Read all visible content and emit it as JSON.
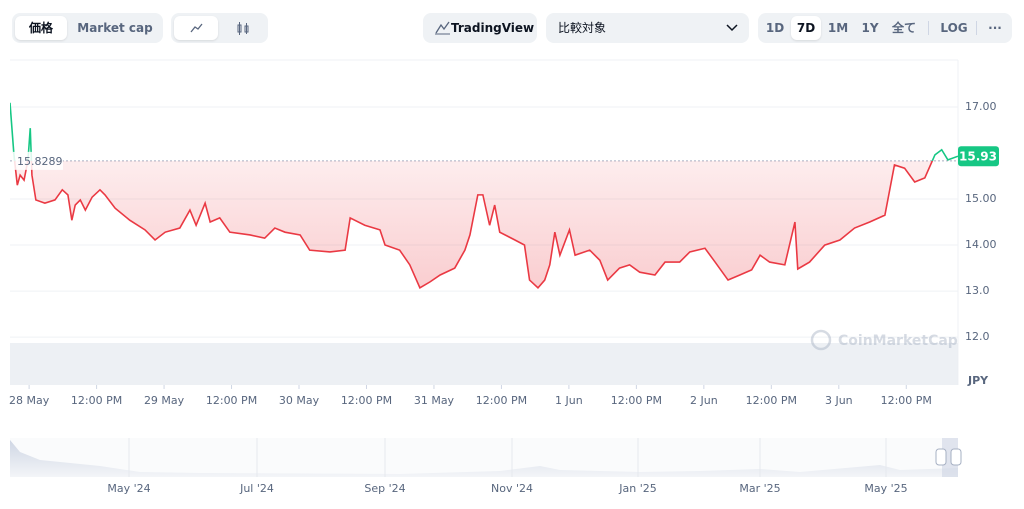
{
  "toolbar": {
    "price_tab": "価格",
    "market_cap_tab": "Market cap",
    "tradingview": "TradingView",
    "compare": "比較対象",
    "ranges": [
      "1D",
      "7D",
      "1M",
      "1Y",
      "全て"
    ],
    "log": "LOG",
    "more": "···"
  },
  "chart_data": {
    "type": "line",
    "baseline": 15.8289,
    "y_label": "JPY",
    "watermark": "CoinMarketCap",
    "color_above": "#16c784",
    "color_below": "#ea3943",
    "xlim": [
      -3.4,
      165.2
    ],
    "xticks": [
      {
        "value": 0,
        "label": "28 May"
      },
      {
        "value": 12,
        "label": "12:00 PM"
      },
      {
        "value": 24,
        "label": "29 May"
      },
      {
        "value": 36,
        "label": "12:00 PM"
      },
      {
        "value": 48,
        "label": "30 May"
      },
      {
        "value": 60,
        "label": "12:00 PM"
      },
      {
        "value": 72,
        "label": "31 May"
      },
      {
        "value": 84,
        "label": "12:00 PM"
      },
      {
        "value": 96,
        "label": "1 Jun"
      },
      {
        "value": 108,
        "label": "12:00 PM"
      },
      {
        "value": 120,
        "label": "2 Jun"
      },
      {
        "value": 132,
        "label": "12:00 PM"
      },
      {
        "value": 144,
        "label": "3 Jun"
      },
      {
        "value": 156,
        "label": "12:00 PM"
      }
    ],
    "ylim": [
      10.96,
      18.02
    ],
    "yticks": [
      {
        "value": 12,
        "label": "12.0"
      },
      {
        "value": 13,
        "label": "13.0"
      },
      {
        "value": 14,
        "label": "14.00"
      },
      {
        "value": 15,
        "label": "15.00"
      },
      {
        "value": 17,
        "label": "17.00"
      }
    ],
    "grid": true,
    "x": [
      -3.4,
      -2.7,
      -2.1,
      -1.6,
      -0.9,
      -0.2,
      0.2,
      0.5,
      1.2,
      2.8,
      4.6,
      5.9,
      6.9,
      7.6,
      8.2,
      9.1,
      10.0,
      11.2,
      12.6,
      13.5,
      15.3,
      17.9,
      20.6,
      22.4,
      24.2,
      26.8,
      28.6,
      29.7,
      31.3,
      32.2,
      33.9,
      35.7,
      39.3,
      41.9,
      43.7,
      45.5,
      48.2,
      49.9,
      53.5,
      56.2,
      57.1,
      59.7,
      62.4,
      63.3,
      65.9,
      67.7,
      69.5,
      71.3,
      73.1,
      75.7,
      77.5,
      78.4,
      79.8,
      80.7,
      81.9,
      82.8,
      83.7,
      86.4,
      88.1,
      89.0,
      90.5,
      91.7,
      92.6,
      93.5,
      94.4,
      96.1,
      97.1,
      99.7,
      101.5,
      102.9,
      105.0,
      106.8,
      108.6,
      111.3,
      113.1,
      115.7,
      117.5,
      120.2,
      122.0,
      124.3,
      126.4,
      128.5,
      130.0,
      131.7,
      134.4,
      136.2,
      136.7,
      138.8,
      141.5,
      144.2,
      146.8,
      149.5,
      152.2,
      153.9,
      155.7,
      157.5,
      159.3,
      161.1,
      162.3,
      163.4,
      165.2
    ],
    "series": [
      {
        "values": [
          17.09,
          15.96,
          15.3,
          15.52,
          15.41,
          15.85,
          16.54,
          15.52,
          14.98,
          14.91,
          14.98,
          15.2,
          15.09,
          14.54,
          14.87,
          14.98,
          14.76,
          15.04,
          15.2,
          15.09,
          14.8,
          14.54,
          14.33,
          14.11,
          14.28,
          14.37,
          14.76,
          14.43,
          14.91,
          14.5,
          14.59,
          14.28,
          14.22,
          14.15,
          14.37,
          14.28,
          14.22,
          13.89,
          13.85,
          13.89,
          14.59,
          14.43,
          14.33,
          14.0,
          13.89,
          13.57,
          13.07,
          13.2,
          13.35,
          13.5,
          13.89,
          14.22,
          15.09,
          15.09,
          14.43,
          14.87,
          14.28,
          14.11,
          14.0,
          13.24,
          13.07,
          13.24,
          13.57,
          14.28,
          13.78,
          14.33,
          13.78,
          13.89,
          13.67,
          13.24,
          13.5,
          13.57,
          13.41,
          13.35,
          13.63,
          13.63,
          13.85,
          13.93,
          13.63,
          13.24,
          13.35,
          13.46,
          13.78,
          13.63,
          13.57,
          14.5,
          13.48,
          13.63,
          14.0,
          14.11,
          14.37,
          14.5,
          14.65,
          15.74,
          15.67,
          15.37,
          15.46,
          15.96,
          16.07,
          15.85,
          15.93
        ]
      }
    ]
  },
  "navigator": {
    "labels": [
      "May '24",
      "Jul '24",
      "Sep '24",
      "Nov '24",
      "Jan '25",
      "Mar '25",
      "May '25"
    ]
  }
}
